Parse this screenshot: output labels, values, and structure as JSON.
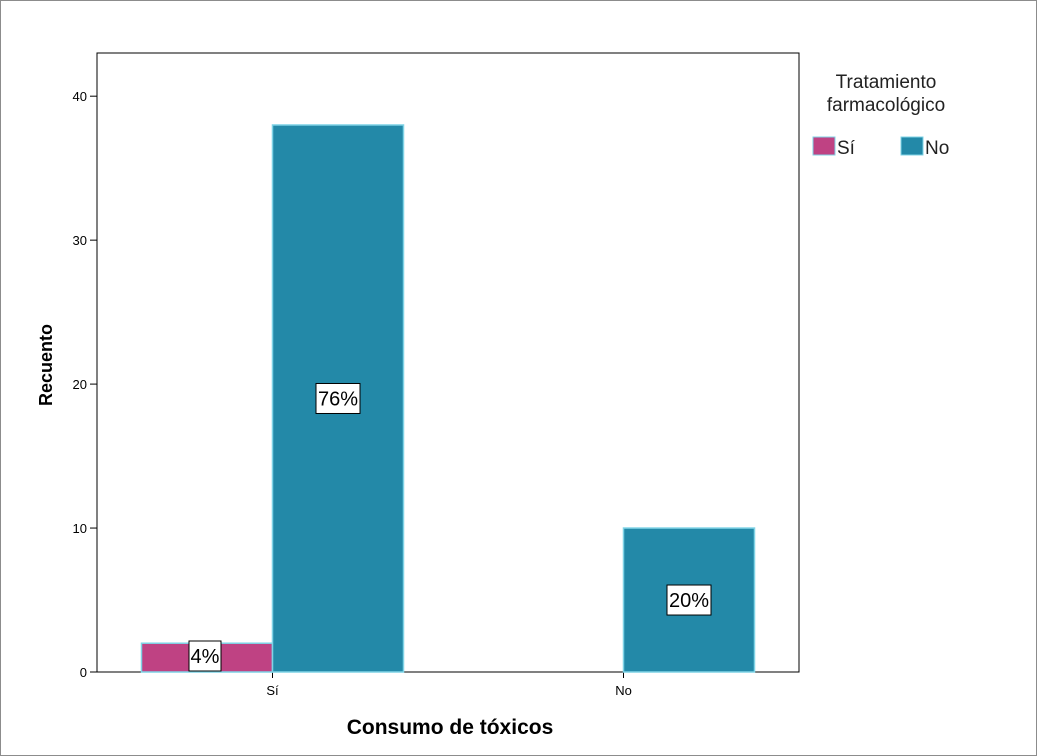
{
  "chart_data": {
    "type": "bar",
    "xlabel": "Consumo de tóxicos",
    "ylabel": "Recuento",
    "categories": [
      "Sí",
      "No"
    ],
    "ylim": [
      0,
      43
    ],
    "yticks": [
      0,
      10,
      20,
      30,
      40
    ],
    "legend": {
      "title_lines": [
        "Tratamiento",
        "farmacológico"
      ],
      "placement": "right"
    },
    "series": [
      {
        "name": "Sí",
        "color": "#bf4283",
        "values": [
          2,
          0
        ],
        "labels": [
          "4%",
          null
        ]
      },
      {
        "name": "No",
        "color": "#2389a8",
        "values": [
          38,
          10
        ],
        "labels": [
          "76%",
          "20%"
        ]
      }
    ],
    "grid": false
  }
}
